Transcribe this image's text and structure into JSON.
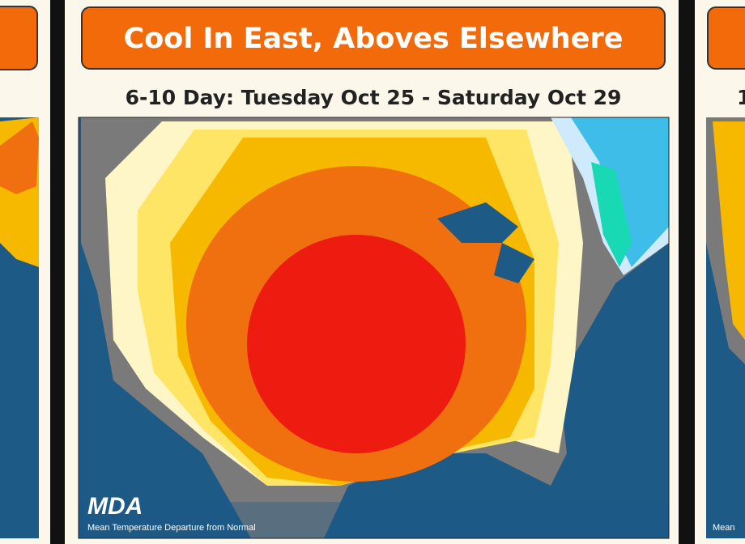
{
  "center_panel": {
    "title": "Cool In East, Aboves Elsewhere",
    "subtitle": "6-10 Day: Tuesday Oct 25 - Saturday Oct 29",
    "logo": "MDA",
    "caption": "Mean Temperature Departure from Normal"
  },
  "right_panel": {
    "subtitle_fragment": "1",
    "caption_fragment": "Mean"
  }
}
